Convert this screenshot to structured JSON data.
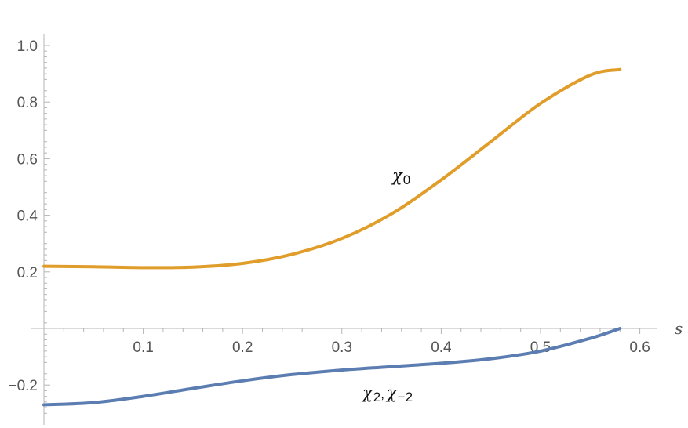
{
  "chart_data": {
    "type": "line",
    "xlabel": "s",
    "ylabel": "",
    "xlim": [
      0.0,
      0.62
    ],
    "ylim": [
      -0.33,
      1.0
    ],
    "x_ticks": [
      0.1,
      0.2,
      0.3,
      0.4,
      0.5,
      0.6
    ],
    "x_tick_labels": [
      "0.1",
      "0.2",
      "0.3",
      "0.4",
      "0.5",
      "0.6"
    ],
    "y_ticks": [
      -0.2,
      0.2,
      0.4,
      0.6,
      0.8,
      1.0
    ],
    "y_tick_labels": [
      "−0.2",
      "0.2",
      "0.4",
      "0.6",
      "0.8",
      "1.0"
    ],
    "grid": false,
    "annotations": [
      {
        "text": "χ",
        "sub": "0"
      },
      {
        "text": "χ",
        "sub": "2",
        "text2": "χ",
        "sub2": "−2"
      }
    ],
    "series": [
      {
        "color": "#E09D2A",
        "x": [
          0.0,
          0.05,
          0.1,
          0.15,
          0.2,
          0.25,
          0.3,
          0.35,
          0.4,
          0.45,
          0.5,
          0.55,
          0.58
        ],
        "y": [
          0.22,
          0.218,
          0.215,
          0.217,
          0.23,
          0.262,
          0.318,
          0.405,
          0.525,
          0.66,
          0.795,
          0.895,
          0.915
        ]
      },
      {
        "color": "#5B7DB1",
        "x": [
          0.0,
          0.05,
          0.1,
          0.15,
          0.2,
          0.25,
          0.3,
          0.35,
          0.4,
          0.45,
          0.5,
          0.55,
          0.58
        ],
        "y": [
          -0.27,
          -0.262,
          -0.24,
          -0.212,
          -0.185,
          -0.163,
          -0.147,
          -0.135,
          -0.123,
          -0.107,
          -0.08,
          -0.035,
          0.0
        ]
      }
    ]
  }
}
